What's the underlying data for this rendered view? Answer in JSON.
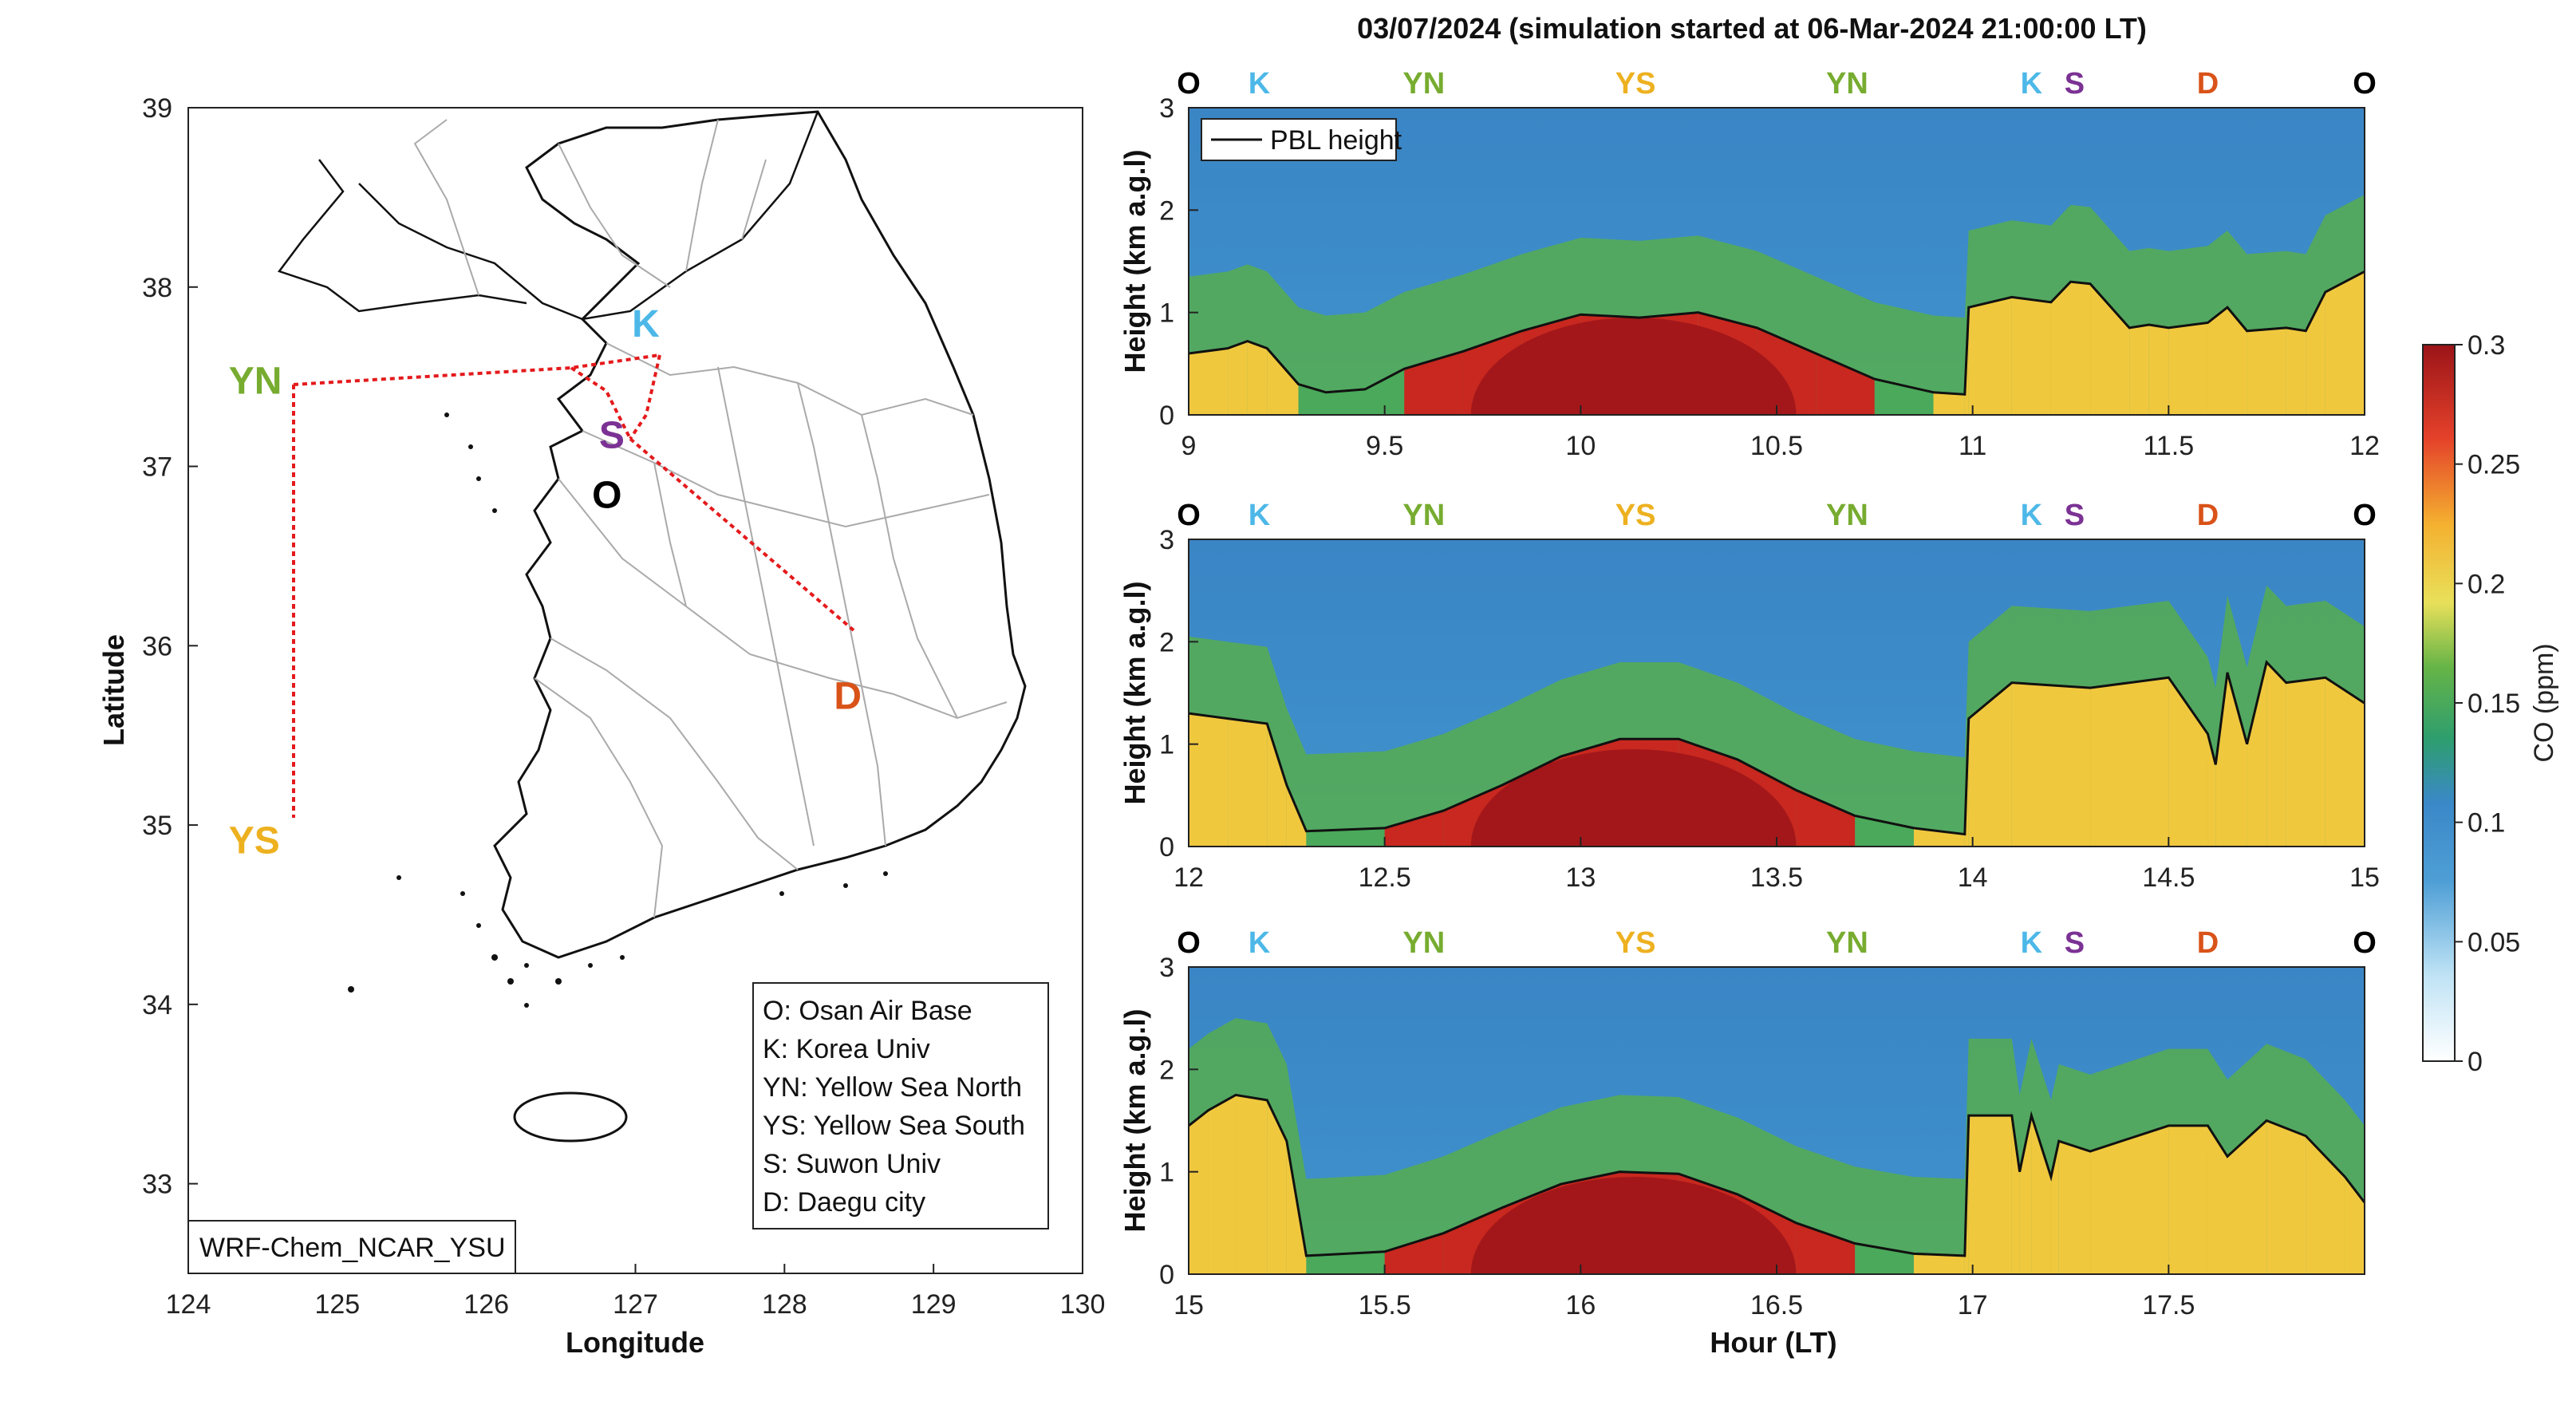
{
  "title": "03/07/2024 (simulation started at 06-Mar-2024 21:00:00 LT)",
  "map": {
    "xlabel": "Longitude",
    "ylabel": "Latitude",
    "xticks": [
      "124",
      "125",
      "126",
      "127",
      "128",
      "129",
      "130"
    ],
    "yticks": [
      "39",
      "38",
      "37",
      "36",
      "35",
      "34",
      "33"
    ],
    "legend": [
      "O: Osan Air Base",
      "K: Korea Univ",
      "YN: Yellow Sea North",
      "YS: Yellow Sea South",
      "S: Suwon Univ",
      "D: Daegu city"
    ],
    "model_label": "WRF-Chem_NCAR_YSU",
    "sites": [
      {
        "code": "K",
        "lon": 127.03,
        "lat": 37.59,
        "color": "#4db8e8"
      },
      {
        "code": "S",
        "lon": 126.97,
        "lat": 37.28,
        "color": "#7b3294"
      },
      {
        "code": "O",
        "lon": 127.03,
        "lat": 37.08,
        "color": "#000000"
      },
      {
        "code": "D",
        "lon": 128.6,
        "lat": 35.87,
        "color": "#d95319"
      },
      {
        "code": "YN",
        "lon": 124.7,
        "lat": 37.45,
        "color": "#77ac30"
      },
      {
        "code": "YS",
        "lon": 124.7,
        "lat": 35.02,
        "color": "#edb120"
      }
    ]
  },
  "route_labels": {
    "colors": {
      "O": "#000000",
      "K": "#4db8e8",
      "S": "#7b3294",
      "D": "#d95319",
      "YN": "#77ac30",
      "YS": "#edb120"
    }
  },
  "panels": [
    {
      "xticks": [
        "9",
        "9.5",
        "10",
        "10.5",
        "11",
        "11.5",
        "12"
      ],
      "xmin": 9,
      "xmax": 12,
      "labels": [
        {
          "t": "O",
          "x": 9
        },
        {
          "t": "K",
          "x": 9.18
        },
        {
          "t": "YN",
          "x": 9.6
        },
        {
          "t": "YS",
          "x": 10.14
        },
        {
          "t": "YN",
          "x": 10.68
        },
        {
          "t": "K",
          "x": 11.15
        },
        {
          "t": "S",
          "x": 11.26
        },
        {
          "t": "D",
          "x": 11.6
        },
        {
          "t": "O",
          "x": 12
        }
      ]
    },
    {
      "xticks": [
        "12",
        "12.5",
        "13",
        "13.5",
        "14",
        "14.5",
        "15"
      ],
      "xmin": 12,
      "xmax": 15,
      "labels": [
        {
          "t": "O",
          "x": 12
        },
        {
          "t": "K",
          "x": 12.18
        },
        {
          "t": "YN",
          "x": 12.6
        },
        {
          "t": "YS",
          "x": 13.14
        },
        {
          "t": "YN",
          "x": 13.68
        },
        {
          "t": "K",
          "x": 14.15
        },
        {
          "t": "S",
          "x": 14.26
        },
        {
          "t": "D",
          "x": 14.6
        },
        {
          "t": "O",
          "x": 15
        }
      ]
    },
    {
      "xticks": [
        "15",
        "15.5",
        "16",
        "16.5",
        "17",
        "17.5"
      ],
      "xmin": 15,
      "xmax": 18,
      "labels": [
        {
          "t": "O",
          "x": 15
        },
        {
          "t": "K",
          "x": 15.18
        },
        {
          "t": "YN",
          "x": 15.6
        },
        {
          "t": "YS",
          "x": 16.14
        },
        {
          "t": "YN",
          "x": 16.68
        },
        {
          "t": "K",
          "x": 17.15
        },
        {
          "t": "S",
          "x": 17.26
        },
        {
          "t": "D",
          "x": 17.6
        },
        {
          "t": "O",
          "x": 18
        }
      ]
    }
  ],
  "chart_data": {
    "type": "heatmap",
    "title": "03/07/2024 (simulation started at 06-Mar-2024 21:00:00 LT)",
    "xlabel": "Hour (LT)",
    "ylabel": "Height (km a.g.l)",
    "ylim": [
      0,
      3
    ],
    "yticks": [
      "0",
      "1",
      "2",
      "3"
    ],
    "legend": {
      "entries": [
        "PBL height"
      ],
      "placement": "top-left"
    },
    "colorbar": {
      "label": "CO (ppm)",
      "range": [
        0,
        0.3
      ],
      "ticks": [
        "0",
        "0.05",
        "0.1",
        "0.15",
        "0.2",
        "0.25",
        "0.3"
      ]
    },
    "pbl_height": [
      {
        "x": [
          9,
          9.1,
          9.15,
          9.2,
          9.28,
          9.35,
          9.45,
          9.55,
          9.7,
          9.85,
          10,
          10.15,
          10.3,
          10.45,
          10.6,
          10.75,
          10.9,
          10.98,
          10.99,
          11.1,
          11.2,
          11.25,
          11.3,
          11.4,
          11.45,
          11.5,
          11.6,
          11.65,
          11.7,
          11.8,
          11.85,
          11.9,
          12
        ],
        "y": [
          0.6,
          0.65,
          0.72,
          0.65,
          0.3,
          0.22,
          0.25,
          0.45,
          0.62,
          0.82,
          0.98,
          0.95,
          1.0,
          0.85,
          0.6,
          0.35,
          0.22,
          0.2,
          1.05,
          1.15,
          1.1,
          1.3,
          1.28,
          0.85,
          0.88,
          0.85,
          0.9,
          1.05,
          0.82,
          0.85,
          0.82,
          1.2,
          1.4
        ]
      },
      {
        "x": [
          12,
          12.1,
          12.2,
          12.25,
          12.3,
          12.5,
          12.65,
          12.8,
          12.95,
          13.1,
          13.25,
          13.4,
          13.55,
          13.7,
          13.85,
          13.98,
          13.99,
          14.1,
          14.3,
          14.5,
          14.6,
          14.62,
          14.65,
          14.7,
          14.75,
          14.8,
          14.9,
          15
        ],
        "y": [
          1.3,
          1.25,
          1.2,
          0.6,
          0.15,
          0.18,
          0.35,
          0.6,
          0.88,
          1.05,
          1.05,
          0.85,
          0.55,
          0.3,
          0.18,
          0.12,
          1.25,
          1.6,
          1.55,
          1.65,
          1.1,
          0.8,
          1.7,
          1.0,
          1.8,
          1.6,
          1.65,
          1.4
        ]
      },
      {
        "x": [
          15,
          15.05,
          15.12,
          15.2,
          15.25,
          15.3,
          15.5,
          15.65,
          15.8,
          15.95,
          16.1,
          16.25,
          16.4,
          16.55,
          16.7,
          16.85,
          16.98,
          16.99,
          17.1,
          17.12,
          17.15,
          17.2,
          17.22,
          17.3,
          17.5,
          17.6,
          17.65,
          17.75,
          17.85,
          17.95,
          18
        ],
        "y": [
          1.45,
          1.6,
          1.75,
          1.7,
          1.3,
          0.18,
          0.22,
          0.4,
          0.65,
          0.88,
          1.0,
          0.98,
          0.78,
          0.5,
          0.3,
          0.2,
          0.18,
          1.55,
          1.55,
          1.0,
          1.55,
          0.95,
          1.3,
          1.2,
          1.45,
          1.45,
          1.15,
          1.5,
          1.35,
          0.95,
          0.7
        ]
      }
    ]
  }
}
